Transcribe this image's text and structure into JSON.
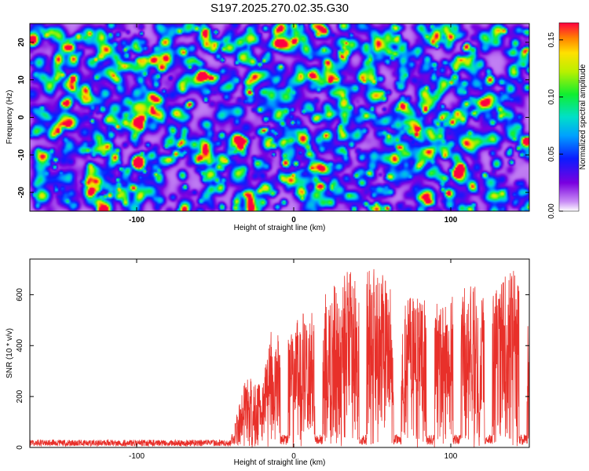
{
  "chart_data": [
    {
      "type": "heatmap",
      "title": "S197.2025.270.02.35.G30",
      "xlabel": "Height of straight line (km)",
      "ylabel": "Frequency (Hz)",
      "xlim": [
        -168,
        150
      ],
      "ylim": [
        -25,
        25
      ],
      "xticks": [
        -100,
        0,
        100
      ],
      "yticks": [
        -20,
        -10,
        0,
        10,
        20
      ],
      "colorbar": {
        "label": "Normalized spectral amplitude",
        "range": [
          0.0,
          0.165
        ],
        "ticks": [
          "0.00",
          "0.05",
          "0.10",
          "0.15"
        ]
      },
      "description": "Noisy spectral amplitude field, mostly 0.02-0.06 with scattered peaks up to ~0.15"
    },
    {
      "type": "line",
      "xlabel": "Height of straight line (km)",
      "ylabel": "SNR (10 * v/v)",
      "xlim": [
        -168,
        150
      ],
      "ylim": [
        0,
        740
      ],
      "xticks": [
        -100,
        0,
        100
      ],
      "yticks": [
        0,
        200,
        400,
        600
      ],
      "color": "#e8302a",
      "series": [
        {
          "name": "SNR",
          "envelope": [
            {
              "x": -168,
              "y": 30
            },
            {
              "x": -40,
              "y": 35
            },
            {
              "x": -30,
              "y": 290
            },
            {
              "x": -20,
              "y": 240
            },
            {
              "x": -15,
              "y": 460
            },
            {
              "x": -5,
              "y": 430
            },
            {
              "x": 5,
              "y": 530
            },
            {
              "x": 15,
              "y": 560
            },
            {
              "x": 25,
              "y": 640
            },
            {
              "x": 35,
              "y": 700
            },
            {
              "x": 45,
              "y": 720
            },
            {
              "x": 55,
              "y": 700
            },
            {
              "x": 65,
              "y": 640
            },
            {
              "x": 75,
              "y": 620
            },
            {
              "x": 85,
              "y": 580
            },
            {
              "x": 95,
              "y": 560
            },
            {
              "x": 105,
              "y": 620
            },
            {
              "x": 115,
              "y": 650
            },
            {
              "x": 125,
              "y": 600
            },
            {
              "x": 135,
              "y": 680
            },
            {
              "x": 143,
              "y": 720
            },
            {
              "x": 150,
              "y": 500
            }
          ],
          "dips": [
            -6,
            16,
            44,
            66,
            87,
            104,
            124,
            146
          ]
        }
      ]
    }
  ]
}
